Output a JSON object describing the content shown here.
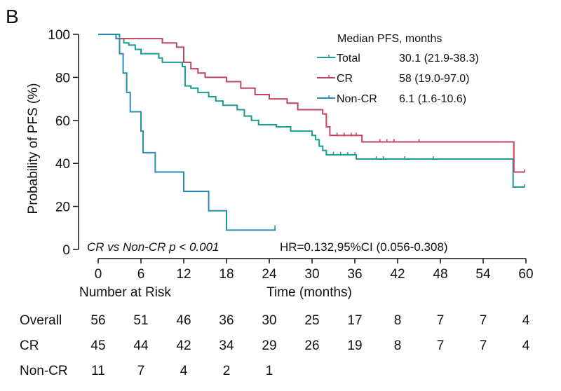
{
  "panel_label": "B",
  "colors": {
    "Total": "#1a9e8f",
    "CR": "#c2455c",
    "Non-CR": "#2a8bb3",
    "axis": "#111111"
  },
  "chart_data": {
    "type": "line",
    "subtype": "kaplan-meier step",
    "xlabel": "Time (months)",
    "ylabel": "Probability of PFS (%)",
    "xlim": [
      0,
      60
    ],
    "ylim": [
      0,
      100
    ],
    "xticks": [
      0,
      6,
      12,
      18,
      24,
      30,
      36,
      42,
      48,
      54,
      60
    ],
    "yticks": [
      0,
      20,
      40,
      60,
      80,
      100
    ],
    "grid": false,
    "legend": {
      "title": "Median PFS, months",
      "position": "top-right",
      "entries": [
        {
          "name": "Total",
          "value": "30.1 (21.9-38.3)"
        },
        {
          "name": "CR",
          "value": "58 (19.0-97.0)"
        },
        {
          "name": "Non-CR",
          "value": "6.1 (1.6-10.6)"
        }
      ]
    },
    "series": [
      {
        "name": "Total",
        "steps": [
          [
            0,
            100
          ],
          [
            3,
            98
          ],
          [
            3.6,
            96
          ],
          [
            4.3,
            95
          ],
          [
            5.2,
            93
          ],
          [
            6,
            91
          ],
          [
            8.5,
            89
          ],
          [
            9,
            87
          ],
          [
            11.8,
            85
          ],
          [
            12.2,
            76
          ],
          [
            13,
            75
          ],
          [
            14,
            73
          ],
          [
            15.5,
            71
          ],
          [
            16.5,
            69
          ],
          [
            17.5,
            67
          ],
          [
            19.5,
            65
          ],
          [
            20.5,
            62
          ],
          [
            21.5,
            60
          ],
          [
            22.5,
            58
          ],
          [
            25,
            57
          ],
          [
            27,
            55
          ],
          [
            30,
            53
          ],
          [
            30.5,
            51
          ],
          [
            31,
            48
          ],
          [
            31.5,
            46
          ],
          [
            32,
            44
          ],
          [
            36.2,
            42
          ],
          [
            58,
            42
          ],
          [
            58.2,
            29
          ],
          [
            59.8,
            29
          ]
        ],
        "censored": [
          [
            33,
            44
          ],
          [
            34,
            44
          ],
          [
            35,
            44
          ],
          [
            36,
            44
          ],
          [
            39,
            42
          ],
          [
            40,
            42
          ],
          [
            43,
            42
          ],
          [
            47,
            42
          ],
          [
            59.8,
            29
          ]
        ]
      },
      {
        "name": "CR",
        "steps": [
          [
            0,
            100
          ],
          [
            2.5,
            98
          ],
          [
            9,
            96
          ],
          [
            11,
            94
          ],
          [
            12,
            87
          ],
          [
            13,
            84
          ],
          [
            14,
            82
          ],
          [
            15,
            80
          ],
          [
            18,
            78
          ],
          [
            20,
            75
          ],
          [
            22,
            72
          ],
          [
            24,
            70
          ],
          [
            26.5,
            68
          ],
          [
            28,
            65
          ],
          [
            31.5,
            63
          ],
          [
            32,
            57
          ],
          [
            32.5,
            53
          ],
          [
            37,
            50
          ],
          [
            58,
            50
          ],
          [
            58.3,
            36
          ],
          [
            59.8,
            36
          ]
        ],
        "censored": [
          [
            33.5,
            53
          ],
          [
            34.5,
            53
          ],
          [
            35.5,
            53
          ],
          [
            36.2,
            53
          ],
          [
            39.5,
            50
          ],
          [
            40.5,
            50
          ],
          [
            41.5,
            50
          ],
          [
            45,
            50
          ],
          [
            59.8,
            36
          ]
        ]
      },
      {
        "name": "Non-CR",
        "steps": [
          [
            0,
            100
          ],
          [
            2.5,
            98
          ],
          [
            3,
            91
          ],
          [
            3.5,
            82
          ],
          [
            4,
            73
          ],
          [
            4.5,
            64
          ],
          [
            6,
            55
          ],
          [
            6.3,
            45
          ],
          [
            8,
            36
          ],
          [
            12,
            27
          ],
          [
            15.5,
            18
          ],
          [
            18,
            9
          ],
          [
            24.8,
            10
          ]
        ],
        "censored": [
          [
            24.8,
            10
          ]
        ]
      }
    ],
    "annotations": [
      {
        "text": "CR vs Non-CR p < 0.001",
        "style": "italic"
      },
      {
        "text": "HR=0.132,95%CI (0.056-0.308)"
      }
    ],
    "risk_table": {
      "title": "Number at Risk",
      "times": [
        0,
        6,
        12,
        18,
        24,
        30,
        36,
        42,
        48,
        54,
        60
      ],
      "rows": [
        {
          "label": "Overall",
          "counts": [
            "56",
            "51",
            "46",
            "36",
            "30",
            "25",
            "17",
            "8",
            "7",
            "7",
            "4"
          ]
        },
        {
          "label": "CR",
          "counts": [
            "45",
            "44",
            "42",
            "34",
            "29",
            "26",
            "19",
            "8",
            "7",
            "7",
            "4"
          ]
        },
        {
          "label": "Non-CR",
          "counts": [
            "11",
            "7",
            "4",
            "2",
            "1"
          ]
        }
      ]
    }
  }
}
